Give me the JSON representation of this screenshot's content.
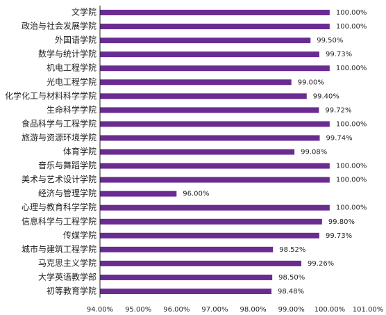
{
  "chart_data": {
    "type": "bar",
    "orientation": "horizontal",
    "categories": [
      "文学院",
      "政治与社会发展学院",
      "外国语学院",
      "数学与统计学院",
      "机电工程学院",
      "光电工程学院",
      "化学化工与材料科学学院",
      "生命科学学院",
      "食品科学与工程学院",
      "旅游与资源环境学院",
      "体育学院",
      "音乐与舞蹈学院",
      "美术与艺术设计学院",
      "经济与管理学院",
      "心理与教育科学学院",
      "信息科学与工程学院",
      "传媒学院",
      "城市与建筑工程学院",
      "马克思主义学院",
      "大学英语教学部",
      "初等教育学院"
    ],
    "values": [
      100.0,
      100.0,
      99.5,
      99.73,
      100.0,
      99.0,
      99.4,
      99.72,
      100.0,
      99.74,
      99.08,
      100.0,
      100.0,
      96.0,
      100.0,
      99.8,
      99.73,
      98.52,
      99.26,
      98.5,
      98.48
    ],
    "value_labels": [
      "100.00%",
      "100.00%",
      "99.50%",
      "99.73%",
      "100.00%",
      "99.00%",
      "99.40%",
      "99.72%",
      "100.00%",
      "99.74%",
      "99.08%",
      "100.00%",
      "100.00%",
      "96.00%",
      "100.00%",
      "99.80%",
      "99.73%",
      "98.52%",
      "99.26%",
      "98.50%",
      "98.48%"
    ],
    "xlim": [
      94,
      101
    ],
    "x_ticks": [
      94,
      95,
      96,
      97,
      98,
      99,
      100,
      101
    ],
    "x_tick_labels": [
      "94.00%",
      "95.00%",
      "96.00%",
      "97.00%",
      "98.00%",
      "99.00%",
      "100.00%",
      "101.00%"
    ],
    "title": "",
    "xlabel": "",
    "ylabel": "",
    "grid": false,
    "legend": "none",
    "bar_color": "#6a2c91"
  }
}
